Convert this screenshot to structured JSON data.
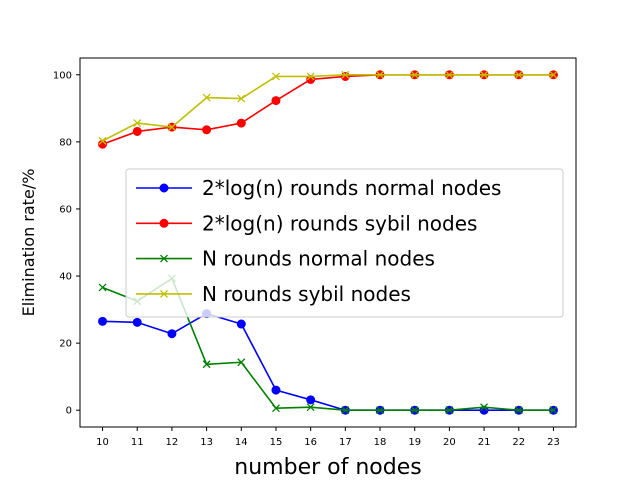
{
  "chart_data": {
    "type": "line",
    "xlabel": "number of nodes",
    "ylabel": "Elimination rate/%",
    "x": [
      10,
      11,
      12,
      13,
      14,
      15,
      16,
      17,
      18,
      19,
      20,
      21,
      22,
      23
    ],
    "xlim": [
      9.35,
      23.65
    ],
    "ylim": [
      -5,
      105
    ],
    "yticks": [
      0,
      20,
      40,
      60,
      80,
      100
    ],
    "grid": false,
    "legend_position": "center-right",
    "series": [
      {
        "name": "2*log(n) rounds normal nodes",
        "color": "#0000ff",
        "marker": "circle",
        "values": [
          26.5,
          26.2,
          22.8,
          28.8,
          25.7,
          6.0,
          3.1,
          0,
          0,
          0,
          0,
          0,
          0,
          0
        ]
      },
      {
        "name": "2*log(n) rounds sybil nodes",
        "color": "#ff0000",
        "marker": "circle",
        "values": [
          79.3,
          83.1,
          84.4,
          83.6,
          85.6,
          92.3,
          98.6,
          99.5,
          100,
          100,
          100,
          100,
          100,
          100
        ]
      },
      {
        "name": "N rounds normal nodes",
        "color": "#008000",
        "marker": "x",
        "values": [
          36.6,
          32.5,
          39.3,
          13.7,
          14.3,
          0.6,
          0.9,
          0,
          0,
          0,
          0,
          0.9,
          0,
          0
        ]
      },
      {
        "name": "N rounds sybil nodes",
        "color": "#bfbf00",
        "marker": "x",
        "values": [
          80.3,
          85.6,
          84.4,
          93.2,
          92.9,
          99.5,
          99.5,
          100,
          100,
          100,
          100,
          100,
          100,
          100
        ]
      }
    ]
  }
}
